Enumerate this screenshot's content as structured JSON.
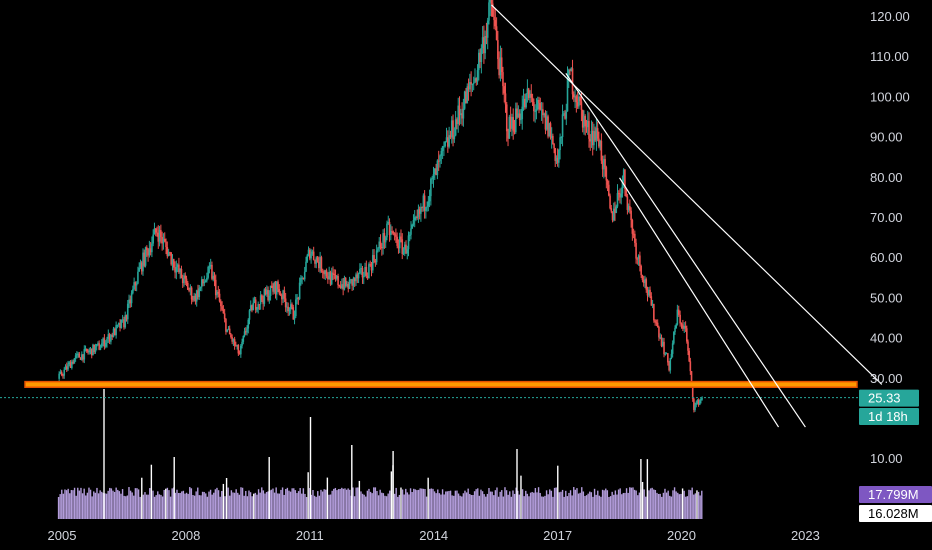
{
  "chart_data": {
    "type": "candlestick",
    "x_axis": {
      "ticks": [
        "2005",
        "2008",
        "2011",
        "2014",
        "2017",
        "2020",
        "2023"
      ],
      "range": [
        2004.3,
        2024.9
      ]
    },
    "y_axis": {
      "ticks": [
        "120.00",
        "110.00",
        "100.00",
        "90.00",
        "80.00",
        "70.00",
        "60.00",
        "50.00",
        "40.00",
        "30.00",
        "10.00"
      ],
      "range": [
        17.5,
        124
      ]
    },
    "price_series_key_points": [
      {
        "x": 2004.9,
        "y": 30
      },
      {
        "x": 2005.3,
        "y": 35
      },
      {
        "x": 2005.9,
        "y": 38
      },
      {
        "x": 2006.5,
        "y": 44
      },
      {
        "x": 2006.9,
        "y": 58
      },
      {
        "x": 2007.3,
        "y": 67
      },
      {
        "x": 2007.8,
        "y": 57
      },
      {
        "x": 2008.2,
        "y": 50
      },
      {
        "x": 2008.6,
        "y": 57
      },
      {
        "x": 2009.0,
        "y": 42
      },
      {
        "x": 2009.3,
        "y": 36
      },
      {
        "x": 2009.6,
        "y": 48
      },
      {
        "x": 2010.2,
        "y": 53
      },
      {
        "x": 2010.6,
        "y": 46
      },
      {
        "x": 2011.0,
        "y": 62
      },
      {
        "x": 2011.5,
        "y": 55
      },
      {
        "x": 2011.9,
        "y": 53
      },
      {
        "x": 2012.4,
        "y": 57
      },
      {
        "x": 2012.9,
        "y": 67
      },
      {
        "x": 2013.3,
        "y": 62
      },
      {
        "x": 2013.9,
        "y": 77
      },
      {
        "x": 2014.5,
        "y": 93
      },
      {
        "x": 2015.0,
        "y": 105
      },
      {
        "x": 2015.4,
        "y": 123
      },
      {
        "x": 2015.8,
        "y": 92
      },
      {
        "x": 2016.3,
        "y": 100
      },
      {
        "x": 2016.8,
        "y": 92
      },
      {
        "x": 2017.0,
        "y": 84
      },
      {
        "x": 2017.3,
        "y": 106
      },
      {
        "x": 2017.7,
        "y": 92
      },
      {
        "x": 2018.0,
        "y": 90
      },
      {
        "x": 2018.3,
        "y": 70
      },
      {
        "x": 2018.6,
        "y": 80
      },
      {
        "x": 2018.9,
        "y": 62
      },
      {
        "x": 2019.3,
        "y": 47
      },
      {
        "x": 2019.7,
        "y": 33
      },
      {
        "x": 2019.9,
        "y": 46
      },
      {
        "x": 2020.1,
        "y": 42
      },
      {
        "x": 2020.3,
        "y": 23
      },
      {
        "x": 2020.5,
        "y": 25.33
      }
    ],
    "trendlines": [
      {
        "from": {
          "x": 2015.4,
          "y": 123
        },
        "to": {
          "x": 2024.85,
          "y": 28.6
        }
      },
      {
        "from": {
          "x": 2017.2,
          "y": 106
        },
        "to": {
          "x": 2023.0,
          "y": 18
        }
      },
      {
        "from": {
          "x": 2018.5,
          "y": 80
        },
        "to": {
          "x": 2022.35,
          "y": 18
        }
      }
    ],
    "horizontal_zone": {
      "y_low": 27.9,
      "y_high": 29.3,
      "color": "#ff9800",
      "border": "#e65100"
    },
    "last_price_line": {
      "y": 25.33,
      "color": "#26a69a"
    },
    "badges": [
      {
        "text": "25.33",
        "bg": "#26a69a",
        "color": "#ffffff"
      },
      {
        "text": "1d 18h",
        "bg": "#26a69a",
        "color": "#ffffff"
      },
      {
        "text": "17.799M",
        "bg": "#7e57c2",
        "color": "#ffffff"
      },
      {
        "text": "16.028M",
        "bg": "#ffffff",
        "color": "#000000"
      }
    ],
    "volume": {
      "color": "#b39ddb",
      "spike_color": "#ffffff"
    },
    "colors": {
      "up": "#26a69a",
      "down": "#ef5350",
      "background": "#000000",
      "axis_text": "#d1d4dc",
      "trendline": "#ffffff"
    }
  }
}
